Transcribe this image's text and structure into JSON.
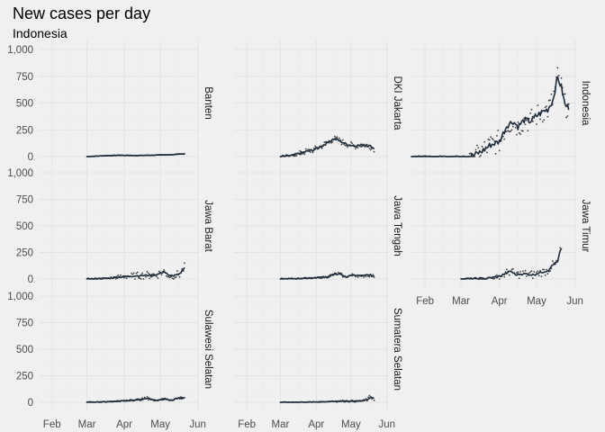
{
  "chart_data": {
    "type": "line",
    "title": "New cases per day",
    "subtitle": "Indonesia",
    "y_ticks": [
      0,
      250,
      500,
      750,
      1000
    ],
    "y_tick_labels": [
      "0",
      "250",
      "500",
      "750",
      "1,000"
    ],
    "ylim": [
      0,
      1000
    ],
    "x_ticks": [
      "2020-02-01",
      "2020-03-01",
      "2020-04-01",
      "2020-05-01",
      "2020-06-01"
    ],
    "x_tick_labels": [
      "Feb",
      "Mar",
      "Apr",
      "May",
      "Jun"
    ],
    "xlim": [
      "2020-01-21",
      "2020-06-02"
    ],
    "grid": true,
    "layout": "facet wrap, 3 columns, free x scale per column",
    "colors": {
      "line": "#1e2c3c",
      "points": "#404040",
      "background": "#f0f0f0"
    },
    "series": [
      {
        "name": "Banten",
        "start": "2020-03-01",
        "end": "2020-05-21",
        "trend": [
          [
            0,
            0
          ],
          [
            14,
            8
          ],
          [
            28,
            12
          ],
          [
            42,
            10
          ],
          [
            56,
            14
          ],
          [
            70,
            18
          ],
          [
            81,
            25
          ]
        ],
        "noise": 3,
        "dot_noise": 5
      },
      {
        "name": "DKI Jakarta",
        "start": "2020-03-01",
        "end": "2020-05-21",
        "trend": [
          [
            0,
            0
          ],
          [
            10,
            8
          ],
          [
            20,
            40
          ],
          [
            28,
            60
          ],
          [
            36,
            100
          ],
          [
            42,
            140
          ],
          [
            46,
            165
          ],
          [
            50,
            155
          ],
          [
            56,
            120
          ],
          [
            64,
            100
          ],
          [
            72,
            110
          ],
          [
            77,
            100
          ],
          [
            81,
            75
          ]
        ],
        "noise": 12,
        "dot_noise": 30
      },
      {
        "name": "Indonesia",
        "start": "2020-01-21",
        "end": "2020-05-27",
        "trend": [
          [
            0,
            0
          ],
          [
            41,
            0
          ],
          [
            50,
            10
          ],
          [
            57,
            50
          ],
          [
            64,
            110
          ],
          [
            71,
            140
          ],
          [
            77,
            290
          ],
          [
            82,
            330
          ],
          [
            86,
            280
          ],
          [
            91,
            340
          ],
          [
            96,
            330
          ],
          [
            101,
            380
          ],
          [
            106,
            420
          ],
          [
            110,
            440
          ],
          [
            114,
            520
          ],
          [
            118,
            740
          ],
          [
            121,
            650
          ],
          [
            124,
            480
          ],
          [
            127,
            460
          ]
        ],
        "noise": 30,
        "dot_noise": 110
      },
      {
        "name": "Jawa Barat",
        "start": "2020-03-01",
        "end": "2020-05-21",
        "trend": [
          [
            0,
            0
          ],
          [
            16,
            5
          ],
          [
            28,
            20
          ],
          [
            40,
            30
          ],
          [
            50,
            35
          ],
          [
            58,
            40
          ],
          [
            64,
            70
          ],
          [
            68,
            30
          ],
          [
            72,
            30
          ],
          [
            77,
            45
          ],
          [
            81,
            110
          ]
        ],
        "noise": 8,
        "dot_noise": 40
      },
      {
        "name": "Jawa Tengah",
        "start": "2020-03-01",
        "end": "2020-05-21",
        "trend": [
          [
            0,
            0
          ],
          [
            16,
            5
          ],
          [
            30,
            10
          ],
          [
            40,
            20
          ],
          [
            46,
            40
          ],
          [
            50,
            50
          ],
          [
            56,
            20
          ],
          [
            64,
            40
          ],
          [
            70,
            25
          ],
          [
            76,
            40
          ],
          [
            81,
            25
          ]
        ],
        "noise": 6,
        "dot_noise": 18
      },
      {
        "name": "Jawa Timur",
        "start": "2020-03-01",
        "end": "2020-05-21",
        "trend": [
          [
            0,
            0
          ],
          [
            20,
            5
          ],
          [
            30,
            20
          ],
          [
            36,
            50
          ],
          [
            40,
            75
          ],
          [
            44,
            40
          ],
          [
            50,
            50
          ],
          [
            58,
            40
          ],
          [
            64,
            60
          ],
          [
            70,
            80
          ],
          [
            74,
            130
          ],
          [
            78,
            160
          ],
          [
            80,
            260
          ],
          [
            81,
            280
          ]
        ],
        "noise": 10,
        "dot_noise": 40
      },
      {
        "name": "Sulawesi Selatan",
        "start": "2020-03-01",
        "end": "2020-05-21",
        "trend": [
          [
            0,
            0
          ],
          [
            16,
            5
          ],
          [
            28,
            12
          ],
          [
            36,
            20
          ],
          [
            44,
            25
          ],
          [
            50,
            40
          ],
          [
            56,
            20
          ],
          [
            64,
            30
          ],
          [
            70,
            20
          ],
          [
            74,
            35
          ],
          [
            81,
            45
          ]
        ],
        "noise": 5,
        "dot_noise": 14
      },
      {
        "name": "Sumatera Selatan",
        "start": "2020-03-01",
        "end": "2020-05-21",
        "trend": [
          [
            0,
            0
          ],
          [
            28,
            2
          ],
          [
            44,
            8
          ],
          [
            56,
            12
          ],
          [
            66,
            10
          ],
          [
            72,
            15
          ],
          [
            76,
            30
          ],
          [
            78,
            50
          ],
          [
            81,
            40
          ]
        ],
        "noise": 3,
        "dot_noise": 25
      }
    ]
  }
}
